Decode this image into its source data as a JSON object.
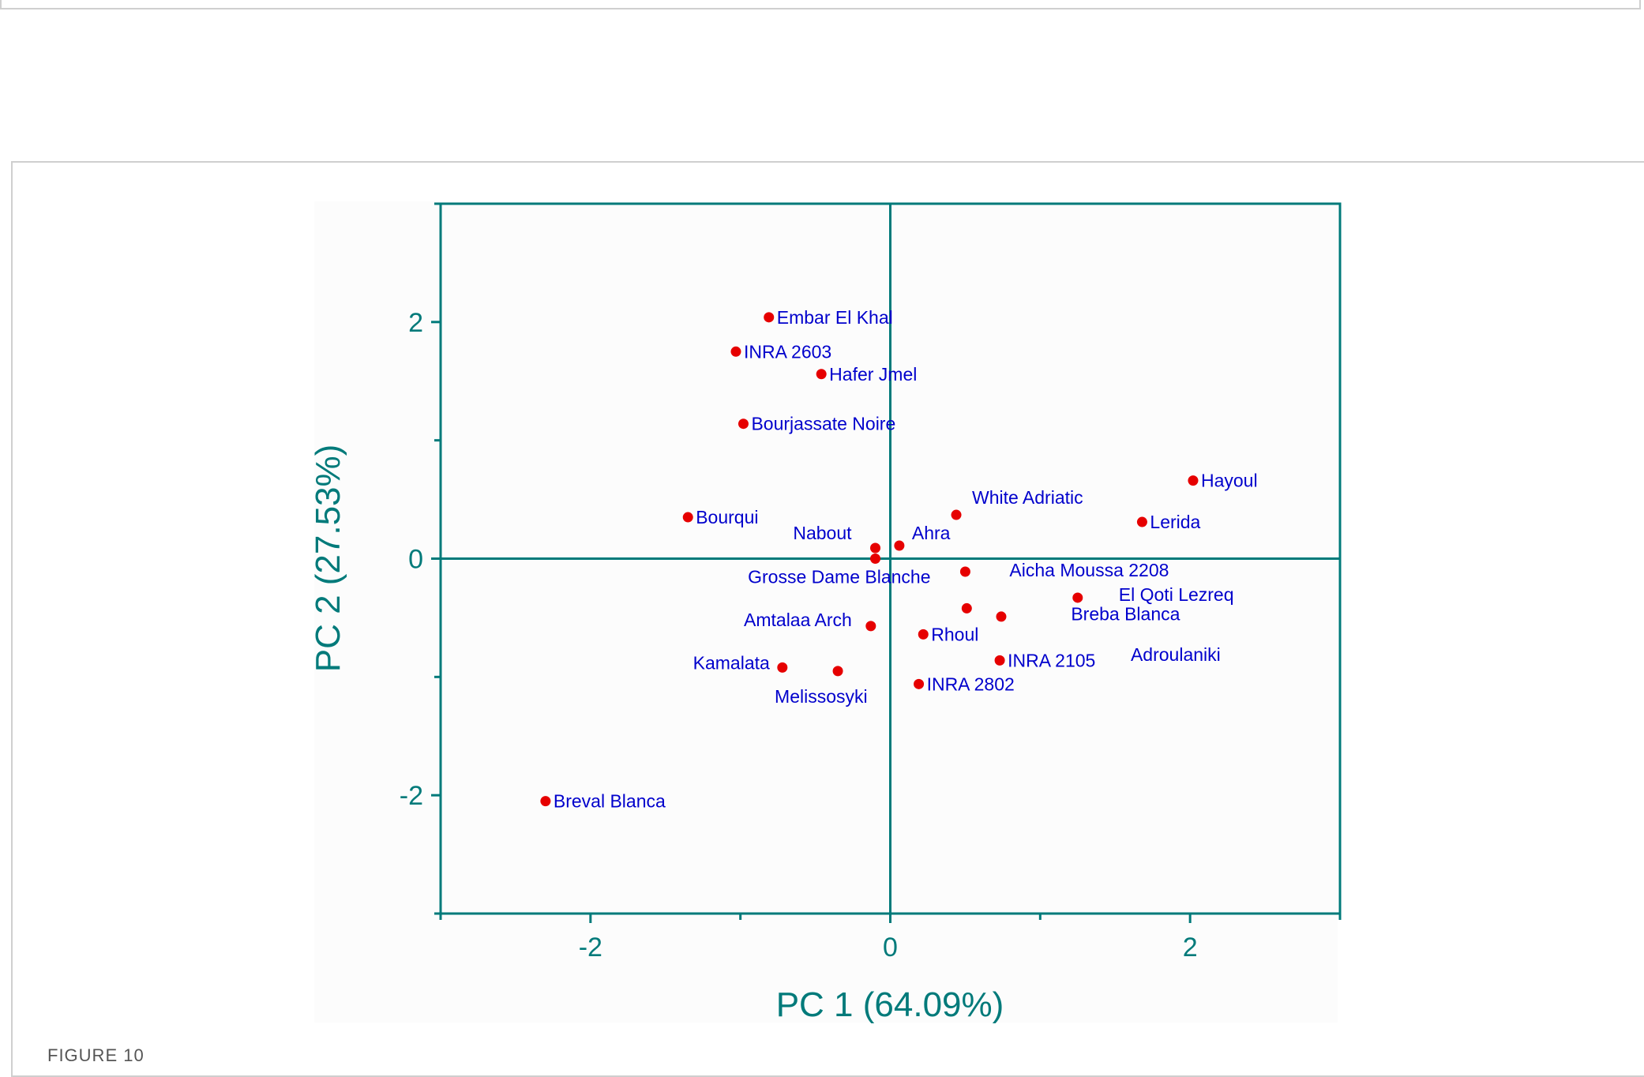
{
  "caption": "FIGURE 10",
  "colors": {
    "axis": "#007a7a",
    "point": "#e60000",
    "label": "#0000cc"
  },
  "chart_data": {
    "type": "scatter",
    "xlabel": "PC 1 (64.09%)",
    "ylabel": "PC 2 (27.53%)",
    "xlim": [
      -3,
      3
    ],
    "ylim": [
      -3,
      3
    ],
    "xticks": [
      -2,
      0,
      2
    ],
    "yticks": [
      -2,
      0,
      2
    ],
    "x_tick_labels": [
      "-2",
      "0",
      "2"
    ],
    "y_tick_labels": [
      "-2",
      "0",
      "2"
    ],
    "grid": false,
    "reference_lines": [
      0,
      0
    ],
    "points": [
      {
        "label": "Embar El Khal",
        "x": -0.81,
        "y": 2.04
      },
      {
        "label": "INRA 2603",
        "x": -1.03,
        "y": 1.75
      },
      {
        "label": "Hafer Jmel",
        "x": -0.46,
        "y": 1.56
      },
      {
        "label": "Bourjassate Noire",
        "x": -0.98,
        "y": 1.14
      },
      {
        "label": "Hayoul",
        "x": 2.02,
        "y": 0.66
      },
      {
        "label": "White Adriatic",
        "x": 0.44,
        "y": 0.37
      },
      {
        "label": "Bourqui",
        "x": -1.35,
        "y": 0.35
      },
      {
        "label": "Lerida",
        "x": 1.68,
        "y": 0.31
      },
      {
        "label": "Ahra",
        "x": 0.06,
        "y": 0.11
      },
      {
        "label": "Nabout",
        "x": -0.1,
        "y": 0.09
      },
      {
        "label": "Grosse Dame Blanche",
        "x": -0.1,
        "y": 0.0
      },
      {
        "label": "Aicha Moussa 2208",
        "x": 0.5,
        "y": -0.11
      },
      {
        "label": "El Qoti Lezreq",
        "x": 1.25,
        "y": -0.33
      },
      {
        "label": "Breba Blanca",
        "x": 0.51,
        "y": -0.42
      },
      {
        "label": "Adroulaniki",
        "x": 0.74,
        "y": -0.49
      },
      {
        "label": "Amtalaa Arch",
        "x": -0.13,
        "y": -0.57
      },
      {
        "label": "Rhoul",
        "x": 0.22,
        "y": -0.64
      },
      {
        "label": "INRA 2105",
        "x": 0.73,
        "y": -0.86
      },
      {
        "label": "Kamalata",
        "x": -0.72,
        "y": -0.92
      },
      {
        "label": "Melissosyki",
        "x": -0.35,
        "y": -0.95
      },
      {
        "label": "INRA 2802",
        "x": 0.19,
        "y": -1.06
      },
      {
        "label": "Breval Blanca",
        "x": -2.3,
        "y": -2.05
      }
    ]
  }
}
